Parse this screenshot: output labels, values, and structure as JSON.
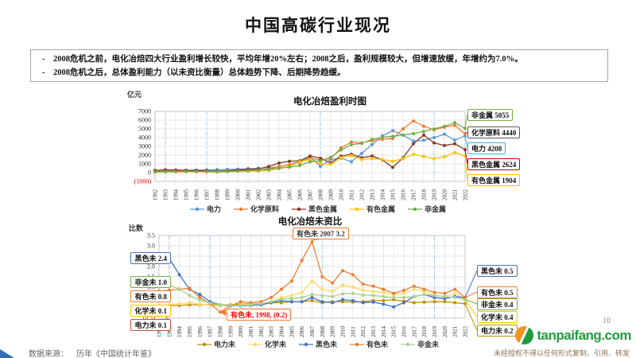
{
  "slide": {
    "title": "中国高碳行业现况",
    "page_number": "10"
  },
  "bullets": [
    {
      "marker": "-",
      "text": "2008危机之前，电化冶焙四大行业盈利增长较快，平均年增20%左右；2008之后，盈利规模较大，但增速放缓，年增约为7.0%。"
    },
    {
      "marker": "-",
      "text": "2008危机之后，总体盈利能力（以未资比衡量）总体趋势下降、后期降势趋缓。"
    }
  ],
  "footer": {
    "source_label": "数据来源：",
    "source_value": "历年《中国统计年鉴》",
    "logo_text": "tanpaifang.com",
    "disclaimer": "未经授权不得以任何形式复制、引用、转发"
  },
  "colors": {
    "logo_green": "#1F9D3C",
    "logo_orange": "#F5921E",
    "reference_line": "#9DC3E6",
    "corner_blue": "#2E74B5"
  },
  "chart_data": [
    {
      "type": "line",
      "title": "电化冶焙盈利时图",
      "ylabel": "亿元",
      "ylim": [
        -1000,
        7000
      ],
      "ytick_step": 1000,
      "grid": true,
      "legend_position": "bottom",
      "x": [
        1992,
        1993,
        1994,
        1995,
        1996,
        1997,
        1998,
        1999,
        2000,
        2001,
        2002,
        2003,
        2004,
        2005,
        2006,
        2007,
        2008,
        2009,
        2010,
        2011,
        2012,
        2013,
        2014,
        2015,
        2016,
        2017,
        2018,
        2019,
        2020,
        2021,
        2022
      ],
      "reference_years": [
        1993,
        1997,
        2008,
        2019
      ],
      "series": [
        {
          "name": "电力",
          "color": "#5B9BD5",
          "values": [
            180,
            210,
            240,
            270,
            300,
            320,
            340,
            360,
            400,
            450,
            500,
            560,
            680,
            900,
            1300,
            1800,
            700,
            1500,
            1650,
            1250,
            2200,
            3200,
            4200,
            4800,
            4300,
            3600,
            3700,
            4000,
            4400,
            3700,
            4208
          ]
        },
        {
          "name": "化学原料",
          "color": "#ED7D31",
          "values": [
            120,
            160,
            180,
            190,
            180,
            170,
            160,
            180,
            240,
            280,
            310,
            430,
            700,
            900,
            1150,
            1650,
            1450,
            1600,
            2850,
            3500,
            3400,
            3650,
            3800,
            3900,
            5000,
            5900,
            5300,
            4900,
            5200,
            5400,
            4440
          ]
        },
        {
          "name": "黑色金属",
          "color": "#8B3A26",
          "values": [
            250,
            320,
            300,
            260,
            230,
            200,
            180,
            200,
            300,
            360,
            420,
            700,
            1100,
            1300,
            1350,
            1900,
            1650,
            1100,
            1900,
            2100,
            1700,
            1900,
            1450,
            600,
            1700,
            3300,
            4300,
            3400,
            3100,
            3300,
            2624
          ]
        },
        {
          "name": "有色金属",
          "color": "#FFC000",
          "values": [
            60,
            90,
            100,
            110,
            100,
            90,
            80,
            100,
            150,
            160,
            180,
            260,
            450,
            700,
            1250,
            1500,
            1000,
            950,
            1700,
            1950,
            1500,
            1600,
            1500,
            1300,
            1600,
            2100,
            1850,
            1600,
            1800,
            2300,
            1904
          ]
        },
        {
          "name": "非金属",
          "color": "#70AD47",
          "values": [
            90,
            110,
            130,
            140,
            130,
            120,
            110,
            130,
            180,
            220,
            260,
            360,
            520,
            620,
            820,
            1250,
            1350,
            1750,
            2600,
            3200,
            3350,
            3800,
            4050,
            4150,
            4300,
            4450,
            4700,
            5000,
            5300,
            5700,
            5055
          ]
        }
      ],
      "callouts": [
        {
          "label": "非金属 5055",
          "series": "非金属",
          "color": "#70AD47"
        },
        {
          "label": "化学原料 4440",
          "series": "化学原料",
          "color": "#595959"
        },
        {
          "label": "电力 4208",
          "series": "电力",
          "color": "#41B0E0"
        },
        {
          "label": "黑色金属 2624",
          "series": "黑色金属",
          "color": "#C00000"
        },
        {
          "label": "有色金属 1904",
          "series": "有色金属",
          "color": "#FFC000"
        }
      ]
    },
    {
      "type": "line",
      "title": "电化冶焙未资比",
      "ylabel": "比数",
      "ylim": [
        -0.5,
        3.5
      ],
      "ytick_step": 0.5,
      "grid": true,
      "legend_position": "bottom",
      "x": [
        1992,
        1993,
        1994,
        1995,
        1996,
        1997,
        1998,
        1999,
        2000,
        2001,
        2002,
        2003,
        2004,
        2005,
        2006,
        2007,
        2008,
        2009,
        2010,
        2011,
        2012,
        2013,
        2014,
        2015,
        2016,
        2017,
        2018,
        2019,
        2020,
        2021,
        2022
      ],
      "reference_years": [
        1993,
        1997,
        2008,
        2019
      ],
      "series": [
        {
          "name": "电力未",
          "color": "#BF8F00",
          "values": [
            0.1,
            0.1,
            0.12,
            0.15,
            0.15,
            0.15,
            0.15,
            0.15,
            0.18,
            0.2,
            0.2,
            0.25,
            0.25,
            0.3,
            0.3,
            0.35,
            0.25,
            0.3,
            0.3,
            0.28,
            0.3,
            0.35,
            0.35,
            0.4,
            0.32,
            0.25,
            0.28,
            0.3,
            0.3,
            0.25,
            0.2
          ]
        },
        {
          "name": "化学未",
          "color": "#FFD966",
          "values": [
            0.1,
            0.15,
            0.2,
            0.25,
            0.18,
            0.12,
            0.1,
            0.1,
            0.15,
            0.18,
            0.2,
            0.3,
            0.5,
            0.6,
            0.75,
            1.3,
            0.9,
            0.8,
            1.1,
            1.0,
            0.85,
            0.8,
            0.75,
            0.65,
            0.7,
            0.9,
            0.8,
            0.6,
            0.55,
            0.7,
            0.4
          ]
        },
        {
          "name": "黑色未",
          "color": "#4472C4",
          "values": [
            2.4,
            2.4,
            1.6,
            0.9,
            0.65,
            0.3,
            0.15,
            0.1,
            0.1,
            0.12,
            0.15,
            0.25,
            0.35,
            0.3,
            0.3,
            0.5,
            0.3,
            0.25,
            0.4,
            0.35,
            0.25,
            0.28,
            0.18,
            0.05,
            0.25,
            0.55,
            0.65,
            0.5,
            0.45,
            0.55,
            0.5
          ]
        },
        {
          "name": "有色未",
          "color": "#ED7D31",
          "values": [
            0.8,
            0.85,
            0.9,
            0.95,
            0.5,
            0.2,
            -0.2,
            0.1,
            0.3,
            0.25,
            0.3,
            0.5,
            0.9,
            1.3,
            2.3,
            3.2,
            1.5,
            1.2,
            1.8,
            1.6,
            1.15,
            1.05,
            0.9,
            0.7,
            0.85,
            1.05,
            0.9,
            0.75,
            0.7,
            0.9,
            0.5
          ]
        },
        {
          "name": "非金未",
          "color": "#A9D18E",
          "values": [
            1.0,
            1.1,
            0.9,
            0.6,
            0.38,
            0.22,
            0.15,
            0.12,
            0.12,
            0.15,
            0.2,
            0.3,
            0.42,
            0.45,
            0.5,
            0.65,
            0.6,
            0.55,
            0.68,
            0.7,
            0.62,
            0.6,
            0.55,
            0.5,
            0.5,
            0.55,
            0.65,
            0.6,
            0.55,
            0.5,
            0.4
          ]
        }
      ],
      "callouts_left": [
        {
          "label": "黑色未 2.4",
          "series": "黑色未",
          "color": "#4472C4"
        },
        {
          "label": "非金未 1.0",
          "series": "非金未",
          "color": "#70AD47"
        },
        {
          "label": "有色未 0.8",
          "series": "有色未",
          "color": "#ED7D31"
        },
        {
          "label": "化学未 0.1",
          "series": "化学未",
          "color": "#FFC000"
        },
        {
          "label": "电力未 0.1",
          "series": "电力未",
          "color": "#C0504D"
        }
      ],
      "callouts_right": [
        {
          "label": "黑色未 0.5",
          "series": "黑色未",
          "color": "#4472C4"
        },
        {
          "label": "有色未 0.5",
          "series": "有色未",
          "color": "#ED7D31"
        },
        {
          "label": "非金未 0.4",
          "series": "非金未",
          "color": "#70AD47"
        },
        {
          "label": "化学未 0.4",
          "series": "化学未",
          "color": "#FFC000"
        },
        {
          "label": "电力未 0.2",
          "series": "电力未",
          "color": "#BF8F00"
        }
      ],
      "annotations": [
        {
          "label": "有色未 2007 3.2",
          "year": 2007,
          "value": 3.2,
          "color": "#ED7D31",
          "text_color": "#333333"
        },
        {
          "label": "有色未, 1998, (0.2)",
          "year": 1998,
          "value": -0.2,
          "color": "#ED7D31",
          "text_color": "#FF0000"
        }
      ]
    }
  ]
}
